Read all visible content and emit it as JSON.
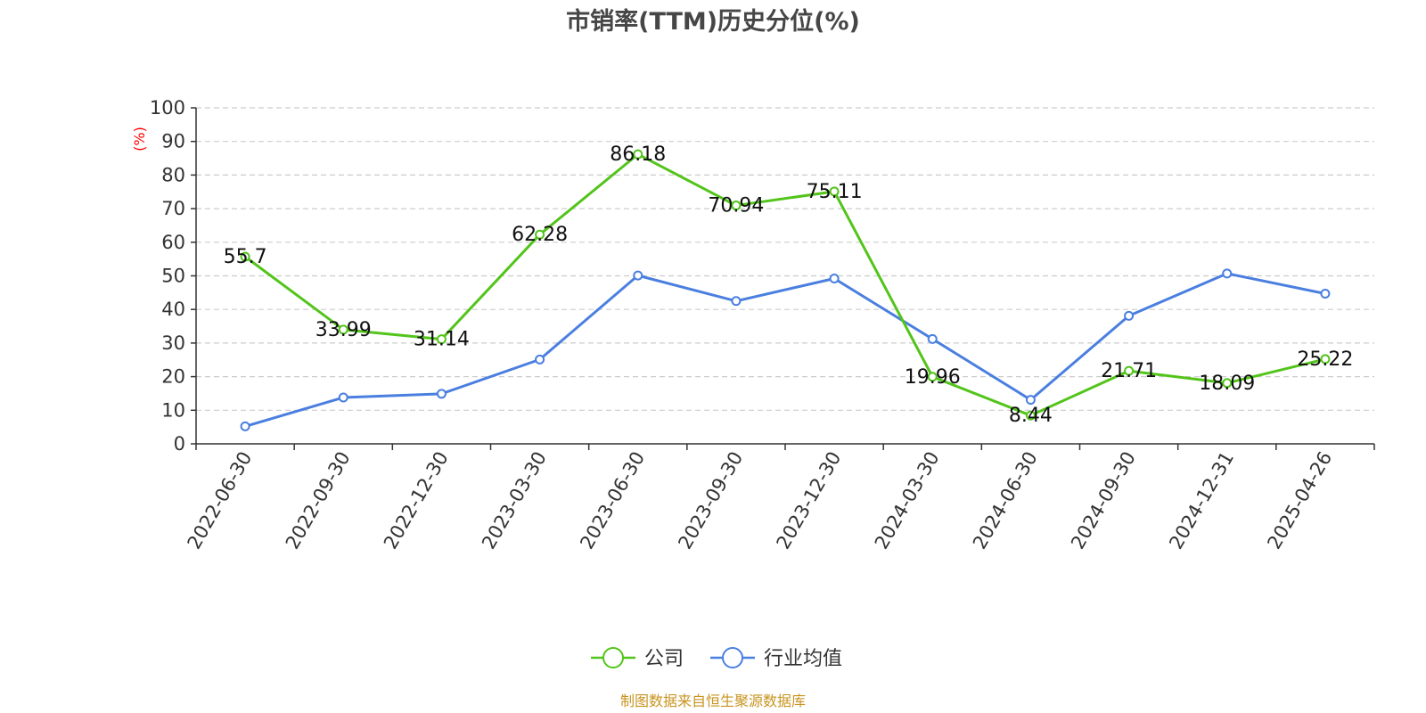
{
  "chart_data": {
    "type": "line",
    "title": "市销率(TTM)历史分位(%)",
    "ylabel": "(%)",
    "ylim": [
      0,
      100
    ],
    "yticks": [
      0,
      10,
      20,
      30,
      40,
      50,
      60,
      70,
      80,
      90,
      100
    ],
    "grid": true,
    "legend_position": "bottom",
    "categories": [
      "2022-06-30",
      "2022-09-30",
      "2022-12-30",
      "2023-03-30",
      "2023-06-30",
      "2023-09-30",
      "2023-12-30",
      "2024-03-30",
      "2024-06-30",
      "2024-09-30",
      "2024-12-31",
      "2025-04-26"
    ],
    "series": [
      {
        "name": "公司",
        "color": "#52c41a",
        "show_labels": true,
        "labels": [
          "55.7",
          "33.99",
          "31.14",
          "62.28",
          "86.18",
          "70.94",
          "75.11",
          "19.96",
          "8.44",
          "21.71",
          "18.09",
          "25.22"
        ],
        "values": [
          55.7,
          33.99,
          31.14,
          62.28,
          86.18,
          70.94,
          75.11,
          19.96,
          8.44,
          21.71,
          18.09,
          25.22
        ]
      },
      {
        "name": "行业均值",
        "color": "#4a7fe0",
        "show_labels": false,
        "values": [
          5.2,
          13.8,
          14.9,
          25.1,
          50.1,
          42.5,
          49.2,
          31.2,
          13.1,
          38.1,
          50.7,
          44.7
        ]
      }
    ]
  },
  "source_note": "制图数据来自恒生聚源数据库"
}
